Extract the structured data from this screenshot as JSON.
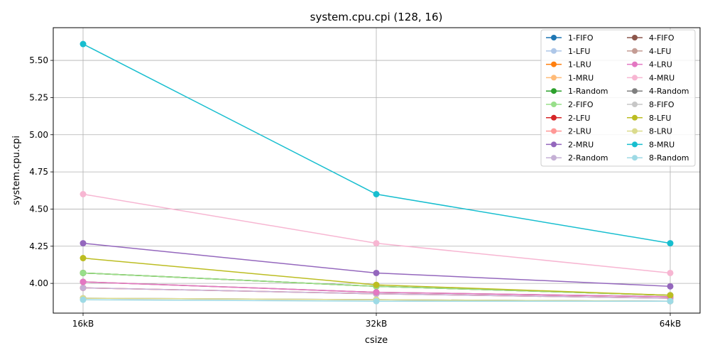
{
  "chart_data": {
    "type": "line",
    "title": "system.cpu.cpi (128, 16)",
    "xlabel": "csize",
    "ylabel": "system.cpu.cpi",
    "categories": [
      "16kB",
      "32kB",
      "64kB"
    ],
    "ylim": [
      3.8,
      5.72
    ],
    "yticks": [
      4.0,
      4.25,
      4.5,
      4.75,
      5.0,
      5.25,
      5.5
    ],
    "ytick_labels": [
      "4.00",
      "4.25",
      "4.50",
      "4.75",
      "5.00",
      "5.25",
      "5.50"
    ],
    "grid": true,
    "legend_position": "top-right",
    "legend_columns": 2,
    "series": [
      {
        "name": "1-FIFO",
        "color": "#1f77b4",
        "values": [
          4.07,
          3.98,
          3.92
        ]
      },
      {
        "name": "1-LFU",
        "color": "#aec7e8",
        "values": [
          3.9,
          3.89,
          3.88
        ]
      },
      {
        "name": "1-LRU",
        "color": "#ff7f0e",
        "values": [
          4.07,
          3.98,
          3.92
        ]
      },
      {
        "name": "1-MRU",
        "color": "#ffbb78",
        "values": [
          4.07,
          3.98,
          3.92
        ]
      },
      {
        "name": "1-Random",
        "color": "#2ca02c",
        "values": [
          4.07,
          3.98,
          3.92
        ]
      },
      {
        "name": "2-FIFO",
        "color": "#98df8a",
        "values": [
          4.07,
          3.98,
          3.92
        ]
      },
      {
        "name": "2-LFU",
        "color": "#d62728",
        "values": [
          3.97,
          3.93,
          3.9
        ]
      },
      {
        "name": "2-LRU",
        "color": "#ff9896",
        "values": [
          3.97,
          3.93,
          3.9
        ]
      },
      {
        "name": "2-MRU",
        "color": "#9467bd",
        "values": [
          4.27,
          4.07,
          3.98
        ]
      },
      {
        "name": "2-Random",
        "color": "#c5b0d5",
        "values": [
          3.97,
          3.93,
          3.9
        ]
      },
      {
        "name": "4-FIFO",
        "color": "#8c564b",
        "values": [
          4.01,
          3.94,
          3.91
        ]
      },
      {
        "name": "4-LFU",
        "color": "#c49c94",
        "values": [
          4.01,
          3.94,
          3.91
        ]
      },
      {
        "name": "4-LRU",
        "color": "#e377c2",
        "values": [
          4.01,
          3.94,
          3.91
        ]
      },
      {
        "name": "4-MRU",
        "color": "#f7b6d2",
        "values": [
          4.6,
          4.27,
          4.07
        ]
      },
      {
        "name": "4-Random",
        "color": "#7f7f7f",
        "values": [
          3.9,
          3.89,
          3.88
        ]
      },
      {
        "name": "8-FIFO",
        "color": "#c7c7c7",
        "values": [
          3.9,
          3.89,
          3.88
        ]
      },
      {
        "name": "8-LFU",
        "color": "#bcbd22",
        "values": [
          4.17,
          3.99,
          3.92
        ]
      },
      {
        "name": "8-LRU",
        "color": "#dbdb8d",
        "values": [
          3.9,
          3.89,
          3.88
        ]
      },
      {
        "name": "8-MRU",
        "color": "#17becf",
        "values": [
          5.61,
          4.6,
          4.27
        ]
      },
      {
        "name": "8-Random",
        "color": "#9edae5",
        "values": [
          3.89,
          3.88,
          3.88
        ]
      }
    ]
  }
}
